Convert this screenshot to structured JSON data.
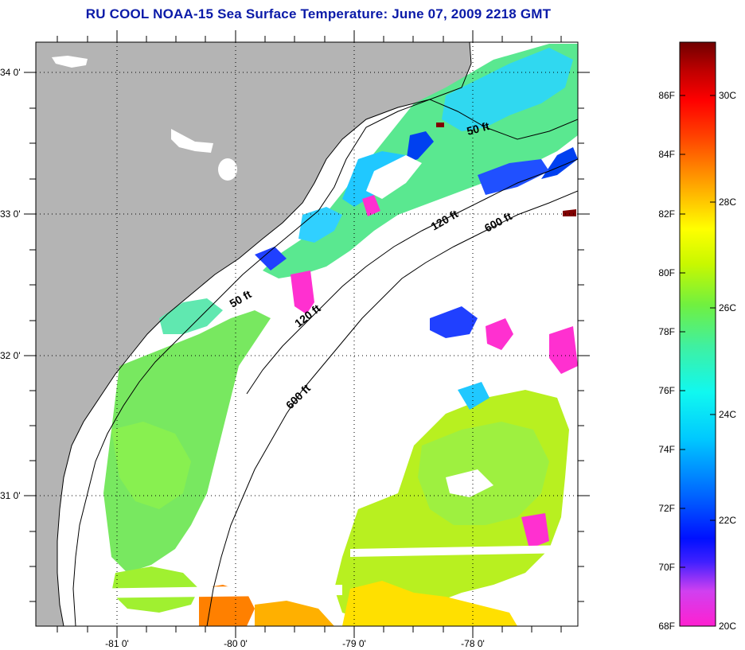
{
  "title": "RU COOL  NOAA-15  Sea Surface Temperature:  June 07, 2009 2218 GMT",
  "axes": {
    "lat_labels": [
      "34 0'",
      "33 0'",
      "32 0'",
      "31 0'"
    ],
    "lon_labels": [
      "-81 0'",
      "-80 0'",
      "-79 0'",
      "-78 0'"
    ]
  },
  "isobath_labels": [
    "50 ft",
    "120 ft",
    "600 ft",
    "50 ft",
    "120 ft",
    "600 ft"
  ],
  "colorbar": {
    "fahrenheit_labels": [
      "86F",
      "84F",
      "82F",
      "80F",
      "78F",
      "76F",
      "74F",
      "72F",
      "70F",
      "68F"
    ],
    "celsius_labels": [
      "30C",
      "28C",
      "26C",
      "24C",
      "22C",
      "20C"
    ],
    "colors": [
      "#ff1ad0",
      "#c040ff",
      "#6040ff",
      "#0020ff",
      "#0070ff",
      "#00b8ff",
      "#00f0ff",
      "#20ffc0",
      "#40ff40",
      "#b0ff00",
      "#ffff00",
      "#ffb000",
      "#ff6000",
      "#ff1000",
      "#d00000",
      "#800000"
    ]
  },
  "colors": {
    "land": "#b4b4b4",
    "title": "#0a1aa8",
    "cloud": "#ffffff"
  }
}
